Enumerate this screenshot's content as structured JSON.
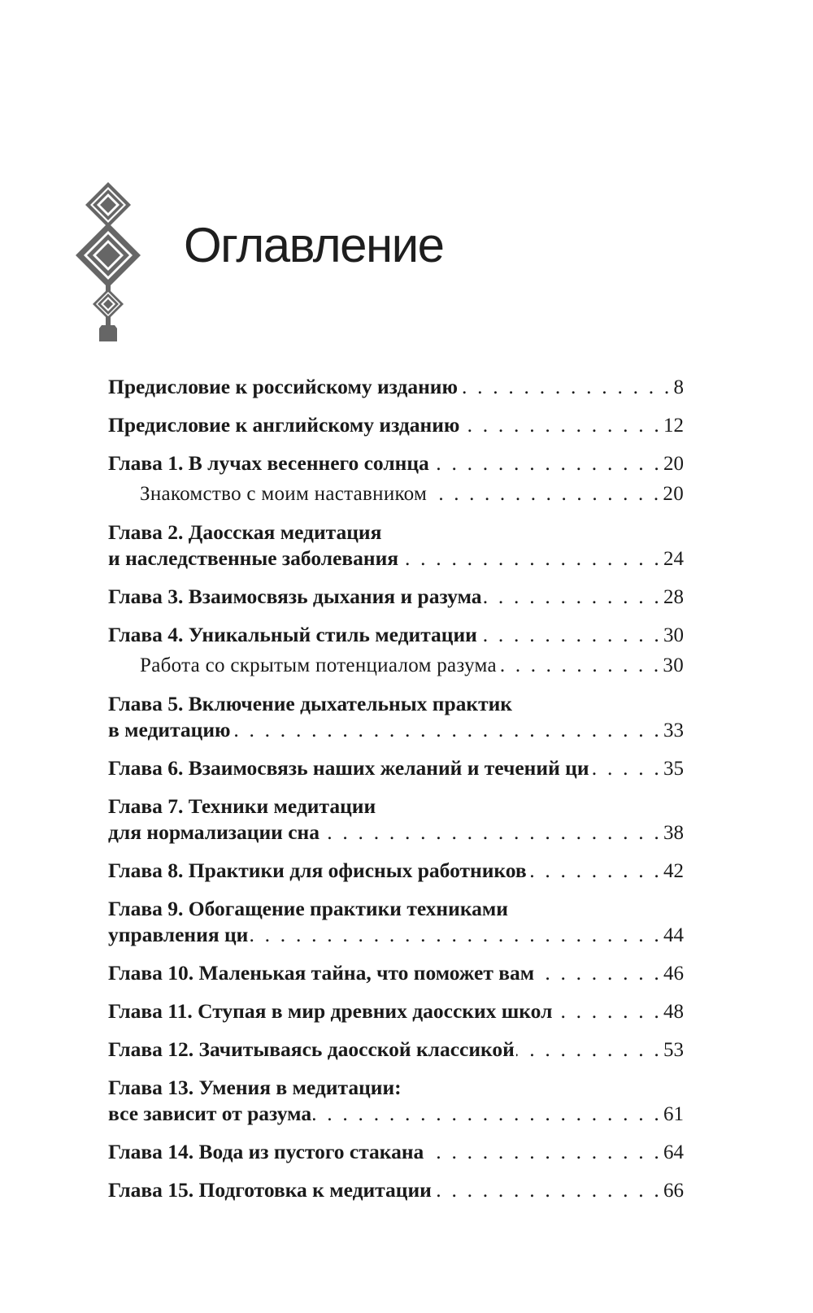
{
  "header": {
    "title": "Оглавление",
    "ornament_icon": "diamond-ornament",
    "ornament_color": "#666666"
  },
  "entries": [
    {
      "lines": [
        "Предисловие к российскому изданию"
      ],
      "page": "8",
      "level": 1
    },
    {
      "lines": [
        "Предисловие к английскому изданию"
      ],
      "page": "12",
      "level": 1
    },
    {
      "lines": [
        "Глава 1. В лучах весеннего солнца"
      ],
      "page": "20",
      "level": 1
    },
    {
      "lines": [
        "Знакомство с моим наставником"
      ],
      "page": "20",
      "level": 2
    },
    {
      "lines": [
        "Глава 2. Даосская медитация",
        "и наследственные заболевания"
      ],
      "page": "24",
      "level": 1
    },
    {
      "lines": [
        "Глава 3. Взаимосвязь дыхания и разума"
      ],
      "page": "28",
      "level": 1
    },
    {
      "lines": [
        "Глава 4. Уникальный стиль медитации"
      ],
      "page": "30",
      "level": 1
    },
    {
      "lines": [
        "Работа со скрытым потенциалом разума"
      ],
      "page": "30",
      "level": 2
    },
    {
      "lines": [
        "Глава 5. Включение дыхательных практик",
        "в медитацию"
      ],
      "page": "33",
      "level": 1
    },
    {
      "lines": [
        "Глава 6. Взаимосвязь наших желаний и течений ци"
      ],
      "page": "35",
      "level": 1
    },
    {
      "lines": [
        "Глава 7. Техники медитации",
        "для нормализации сна"
      ],
      "page": "38",
      "level": 1
    },
    {
      "lines": [
        "Глава 8. Практики для офисных работников"
      ],
      "page": "42",
      "level": 1
    },
    {
      "lines": [
        "Глава 9. Обогащение практики техниками",
        "управления ци"
      ],
      "page": "44",
      "level": 1
    },
    {
      "lines": [
        "Глава 10. Маленькая тайна, что поможет вам"
      ],
      "page": "46",
      "level": 1
    },
    {
      "lines": [
        "Глава 11. Ступая в мир древних даосских школ"
      ],
      "page": "48",
      "level": 1
    },
    {
      "lines": [
        "Глава 12. Зачитываясь даосской классикой"
      ],
      "page": "53",
      "level": 1
    },
    {
      "lines": [
        "Глава 13. Умения в медитации:",
        "все зависит от разума"
      ],
      "page": "61",
      "level": 1
    },
    {
      "lines": [
        "Глава 14. Вода из пустого стакана"
      ],
      "page": "64",
      "level": 1
    },
    {
      "lines": [
        "Глава 15. Подготовка к медитации"
      ],
      "page": "66",
      "level": 1
    }
  ]
}
